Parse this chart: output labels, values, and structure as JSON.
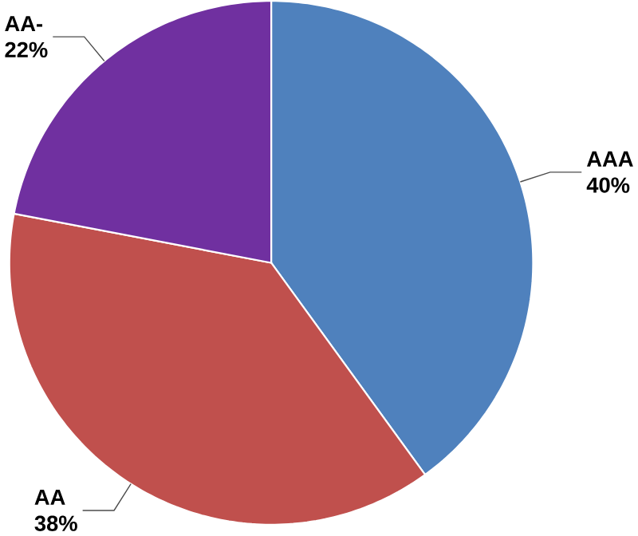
{
  "chart_data": {
    "type": "pie",
    "categories": [
      "AAA",
      "AA",
      "AA-"
    ],
    "values": [
      40,
      38,
      22
    ],
    "value_labels": [
      "40%",
      "38%",
      "22%"
    ],
    "colors": [
      "#4f81bd",
      "#c0504d",
      "#7030a0"
    ]
  }
}
